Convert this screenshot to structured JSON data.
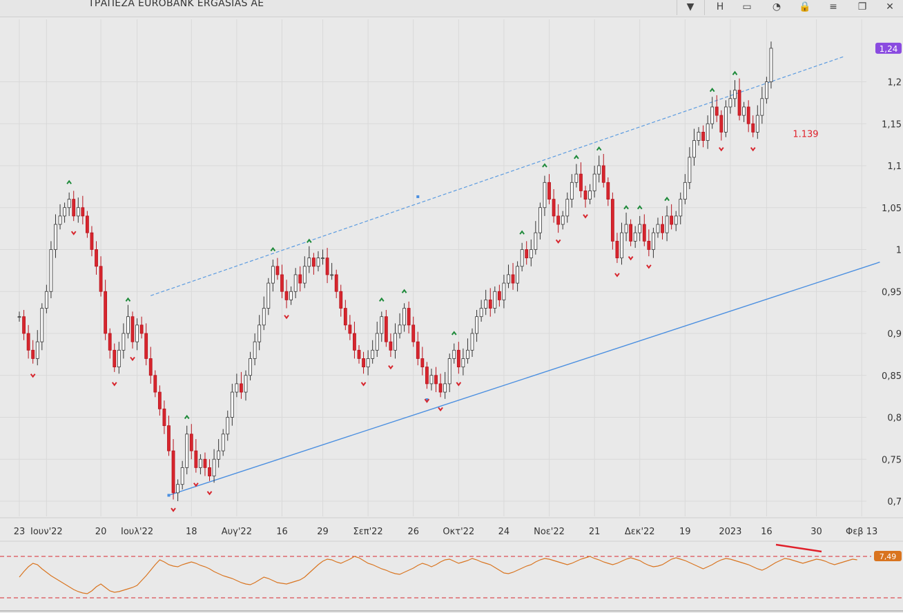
{
  "window": {
    "title": "ΤΡΑΠΕΖΑ EUROBANK ERGASIAS AE",
    "buttons": [
      {
        "name": "dropdown-icon",
        "glyph": "▼"
      },
      {
        "name": "h-button",
        "glyph": "H"
      },
      {
        "name": "bar-icon",
        "glyph": "▭"
      },
      {
        "name": "gauge-icon",
        "glyph": "◔"
      },
      {
        "name": "lock-icon",
        "glyph": "🔒"
      },
      {
        "name": "menu-icon",
        "glyph": "≡"
      },
      {
        "name": "restore-icon",
        "glyph": "❐"
      },
      {
        "name": "close-icon",
        "glyph": "✕"
      }
    ]
  },
  "chart_data": {
    "type": "candlestick",
    "y_axis": {
      "range": [
        0.685,
        1.3
      ],
      "ticks": [
        "1,2",
        "1,15",
        "1,1",
        "1,05",
        "1",
        "0,95",
        "0,9",
        "0,85",
        "0,8",
        "0,75",
        "0,7"
      ],
      "tick_values": [
        1.2,
        1.15,
        1.1,
        1.05,
        1.0,
        0.95,
        0.9,
        0.85,
        0.8,
        0.75,
        0.7
      ]
    },
    "x_axis": {
      "range": [
        0,
        175
      ],
      "labels": [
        {
          "text": "23",
          "x": 0
        },
        {
          "text": "Ιουν'22",
          "x": 6
        },
        {
          "text": "20",
          "x": 18
        },
        {
          "text": "Ιουλ'22",
          "x": 26
        },
        {
          "text": "18",
          "x": 38
        },
        {
          "text": "Αυγ'22",
          "x": 48
        },
        {
          "text": "16",
          "x": 58
        },
        {
          "text": "29",
          "x": 67
        },
        {
          "text": "Σεπ'22",
          "x": 77
        },
        {
          "text": "26",
          "x": 87
        },
        {
          "text": "Οκτ'22",
          "x": 97
        },
        {
          "text": "24",
          "x": 107
        },
        {
          "text": "Νοε'22",
          "x": 117
        },
        {
          "text": "21",
          "x": 127
        },
        {
          "text": "Δεκ'22",
          "x": 137
        },
        {
          "text": "19",
          "x": 147
        },
        {
          "text": "2023",
          "x": 157
        },
        {
          "text": "16",
          "x": 165
        },
        {
          "text": "30",
          "x": 176
        },
        {
          "text": "Φεβ 13",
          "x": 186
        }
      ]
    },
    "last_price_label": "1,24",
    "last_price": 1.24,
    "annotation": {
      "text": "1.139",
      "value": 1.139
    },
    "channel": {
      "upper": [
        {
          "x": 29,
          "y": 0.945
        },
        {
          "x": 182,
          "y": 1.23
        }
      ],
      "lower": [
        {
          "x": 33,
          "y": 0.707
        },
        {
          "x": 190,
          "y": 0.985
        }
      ]
    },
    "closes": [
      0.92,
      0.9,
      0.88,
      0.87,
      0.89,
      0.93,
      0.95,
      1.0,
      1.03,
      1.04,
      1.05,
      1.06,
      1.04,
      1.05,
      1.04,
      1.02,
      1.0,
      0.98,
      0.95,
      0.9,
      0.88,
      0.86,
      0.88,
      0.9,
      0.92,
      0.89,
      0.91,
      0.9,
      0.87,
      0.85,
      0.83,
      0.81,
      0.79,
      0.76,
      0.71,
      0.72,
      0.74,
      0.78,
      0.76,
      0.74,
      0.75,
      0.74,
      0.73,
      0.75,
      0.76,
      0.78,
      0.8,
      0.83,
      0.84,
      0.83,
      0.85,
      0.87,
      0.89,
      0.91,
      0.93,
      0.96,
      0.98,
      0.97,
      0.95,
      0.94,
      0.95,
      0.97,
      0.96,
      0.98,
      0.99,
      0.98,
      0.99,
      0.99,
      0.97,
      0.97,
      0.95,
      0.93,
      0.91,
      0.9,
      0.88,
      0.87,
      0.86,
      0.87,
      0.88,
      0.9,
      0.92,
      0.89,
      0.88,
      0.9,
      0.91,
      0.93,
      0.91,
      0.89,
      0.87,
      0.86,
      0.84,
      0.85,
      0.84,
      0.83,
      0.84,
      0.87,
      0.88,
      0.86,
      0.87,
      0.88,
      0.9,
      0.92,
      0.93,
      0.94,
      0.93,
      0.95,
      0.94,
      0.96,
      0.97,
      0.96,
      0.98,
      1.0,
      0.99,
      1.0,
      1.02,
      1.05,
      1.08,
      1.06,
      1.04,
      1.03,
      1.04,
      1.06,
      1.08,
      1.09,
      1.07,
      1.06,
      1.07,
      1.09,
      1.1,
      1.08,
      1.06,
      1.01,
      0.99,
      1.02,
      1.03,
      1.01,
      1.02,
      1.03,
      1.01,
      1.0,
      1.02,
      1.03,
      1.02,
      1.04,
      1.03,
      1.04,
      1.06,
      1.08,
      1.11,
      1.13,
      1.14,
      1.13,
      1.15,
      1.17,
      1.16,
      1.14,
      1.17,
      1.18,
      1.19,
      1.16,
      1.17,
      1.15,
      1.14,
      1.16,
      1.18,
      1.2,
      1.24
    ],
    "oscillator": {
      "type": "line",
      "label": "7,49",
      "values": [
        40,
        48,
        55,
        60,
        58,
        52,
        47,
        42,
        38,
        34,
        30,
        26,
        22,
        19,
        17,
        16,
        20,
        26,
        30,
        25,
        20,
        18,
        19,
        21,
        23,
        25,
        28,
        35,
        42,
        50,
        58,
        65,
        62,
        58,
        56,
        55,
        58,
        60,
        62,
        60,
        57,
        55,
        52,
        48,
        45,
        42,
        40,
        38,
        35,
        32,
        30,
        29,
        32,
        36,
        40,
        38,
        35,
        32,
        31,
        30,
        32,
        34,
        36,
        40,
        46,
        52,
        58,
        63,
        66,
        65,
        62,
        60,
        63,
        66,
        70,
        68,
        64,
        60,
        58,
        55,
        52,
        50,
        47,
        45,
        44,
        47,
        50,
        53,
        57,
        60,
        58,
        55,
        58,
        62,
        65,
        66,
        63,
        60,
        62,
        64,
        67,
        65,
        62,
        60,
        58,
        54,
        50,
        46,
        45,
        47,
        50,
        53,
        56,
        58,
        62,
        65,
        67,
        66,
        64,
        62,
        60,
        58,
        60,
        63,
        66,
        68,
        70,
        67,
        65,
        62,
        60,
        58,
        60,
        63,
        66,
        68,
        66,
        64,
        60,
        57,
        55,
        56,
        58,
        62,
        66,
        68,
        66,
        64,
        61,
        58,
        55,
        52,
        55,
        58,
        62,
        65,
        67,
        66,
        64,
        62,
        60,
        58,
        55,
        52,
        50,
        53,
        57,
        61,
        64,
        67,
        66,
        64,
        62,
        60,
        62,
        64,
        66,
        65,
        63,
        60,
        58,
        60,
        62,
        64,
        66,
        65
      ]
    }
  }
}
